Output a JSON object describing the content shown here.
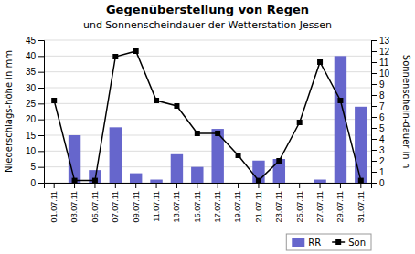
{
  "chart_data": {
    "type": "bar",
    "title": "Gegenüberstellung von Regen",
    "subtitle": "und Sonnenscheindauer der Wetterstation Jessen",
    "ylabel": "Niederschlags-höhe in mm",
    "y2label": "Sonnenschein-dauer in h",
    "categories": [
      "01.07.11",
      "03.07.11",
      "05.07.11",
      "07.07.11",
      "09.07.11",
      "11.07.11",
      "13.07.11",
      "15.07.11",
      "17.07.11",
      "19.07.11",
      "21.07.11",
      "23.07.11",
      "25.07.11",
      "27.07.11",
      "29.07.11",
      "31.07.11"
    ],
    "series": [
      {
        "name": "RR",
        "type": "bar",
        "color": "#6666cc",
        "values": [
          0,
          15,
          4,
          17.5,
          3,
          1,
          9,
          5,
          17,
          0,
          7,
          7.5,
          0,
          1,
          40,
          24
        ]
      },
      {
        "name": "Son",
        "type": "line",
        "axis": "y2",
        "color": "#000000",
        "marker": "square",
        "values": [
          7.5,
          0.2,
          0.2,
          11.5,
          12,
          7.5,
          7,
          4.5,
          4.5,
          2.5,
          0.2,
          2,
          5.5,
          11.0,
          7.5,
          0.2
        ]
      }
    ],
    "ylim": [
      0,
      45
    ],
    "yticks": [
      0,
      5,
      10,
      15,
      20,
      25,
      30,
      35,
      40,
      45
    ],
    "y2lim": [
      0,
      13
    ],
    "y2ticks": [
      0,
      1,
      2,
      3,
      4,
      5,
      6,
      7,
      8,
      9,
      10,
      11,
      12,
      13
    ],
    "grid": true,
    "legend": "lower right"
  }
}
